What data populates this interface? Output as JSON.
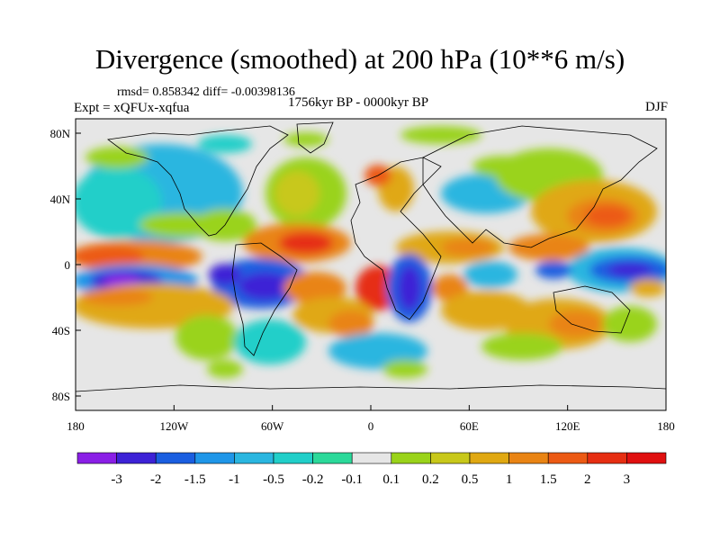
{
  "header": {
    "title": "Divergence (smoothed) at 200 hPa (10**6 m/s)",
    "stats": "rmsd= 0.858342 diff= -0.00398136",
    "experiment": "Expt = xQFUx-xqfua",
    "period": "1756kyr BP - 0000kyr BP",
    "season": "DJF"
  },
  "axes": {
    "y_ticks": [
      "80N",
      "40N",
      "0",
      "40S",
      "80S"
    ],
    "x_ticks": [
      "180",
      "120W",
      "60W",
      "0",
      "60E",
      "120E",
      "180"
    ]
  },
  "colorbar": {
    "labels": [
      "-3",
      "-2",
      "-1.5",
      "-1",
      "-0.5",
      "-0.2",
      "-0.1",
      "0.1",
      "0.2",
      "0.5",
      "1",
      "1.5",
      "2",
      "3"
    ],
    "colors": [
      "#8a1fe6",
      "#3d22d6",
      "#1a5ee0",
      "#1f96e8",
      "#2ab6e0",
      "#21cfc9",
      "#2bd99a",
      "#e6e6e6",
      "#9ad31a",
      "#c8c81a",
      "#e0a812",
      "#e98414",
      "#ec5a14",
      "#e62e12",
      "#e01010"
    ]
  },
  "colors": {
    "background_ocean": "#e6e6e6",
    "coastline": "#000000"
  }
}
